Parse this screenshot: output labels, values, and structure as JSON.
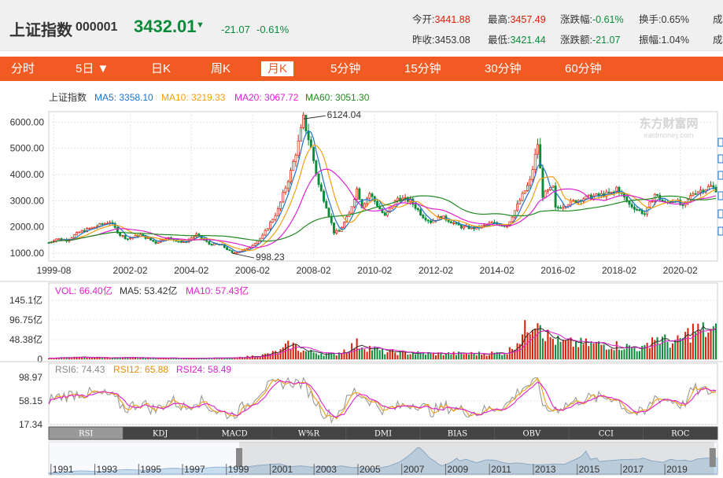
{
  "header": {
    "name": "上证指数",
    "code": "000001",
    "price": "3432.01",
    "arrow": "▼",
    "change": "-21.07",
    "change_pct": "-0.61%",
    "stats": [
      {
        "label": "今开:",
        "value": "3441.88",
        "color": "#d81e06"
      },
      {
        "label": "最高:",
        "value": "3457.49",
        "color": "#d81e06"
      },
      {
        "label": "涨跌幅:",
        "value": "-0.61%",
        "color": "#0b8a3a"
      },
      {
        "label": "换手:",
        "value": "0.65%",
        "color": "#333333"
      },
      {
        "label": "昨收:",
        "value": "3453.08",
        "color": "#333333"
      },
      {
        "label": "最低:",
        "value": "3421.44",
        "color": "#0b8a3a"
      },
      {
        "label": "涨跌额:",
        "value": "-21.07",
        "color": "#0b8a3a"
      },
      {
        "label": "振幅:",
        "value": "1.04%",
        "color": "#333333"
      }
    ],
    "cut_label": "成"
  },
  "tabs": [
    "分时",
    "5日 ▼",
    "日K",
    "周K",
    "月K",
    "5分钟",
    "15分钟",
    "30分钟",
    "60分钟"
  ],
  "active_tab": "月K",
  "colors": {
    "up": "#d81e06",
    "down": "#0b8a3a",
    "accent": "#f15a22",
    "ma5": "#1e73c8",
    "ma10": "#f0a010",
    "ma20": "#e020d0",
    "ma60": "#208a20",
    "rsi6": "#888888",
    "rsi12": "#f0a010",
    "rsi24": "#e020d0"
  },
  "watermark": "东方财富网",
  "watermark_sub": "eastmoney.com",
  "chart_data": [
    {
      "type": "candlestick",
      "title": "上证指数",
      "legend": [
        {
          "name": "MA5",
          "value": "3358.10"
        },
        {
          "name": "MA10",
          "value": "3219.33"
        },
        {
          "name": "MA20",
          "value": "3067.72"
        },
        {
          "name": "MA60",
          "value": "3051.30"
        }
      ],
      "ylim": [
        700,
        6400
      ],
      "y_ticks": [
        "1000.00",
        "2000.00",
        "3000.00",
        "4000.00",
        "5000.00",
        "6000.00"
      ],
      "x_ticks": [
        "1999-08",
        "2002-02",
        "2004-02",
        "2006-02",
        "2008-02",
        "2010-02",
        "2012-02",
        "2014-02",
        "2016-02",
        "2018-02",
        "2020-02"
      ],
      "annotations": [
        {
          "text": "6124.04",
          "date": "2007-10",
          "value": 6124.04
        },
        {
          "text": "998.23",
          "date": "2005-06",
          "value": 998.23
        }
      ],
      "anchors": [
        [
          "1999-06",
          1400
        ],
        [
          "1999-09",
          1550
        ],
        [
          "2000-01",
          1500
        ],
        [
          "2000-06",
          1800
        ],
        [
          "2000-12",
          2000
        ],
        [
          "2001-06",
          2200
        ],
        [
          "2001-10",
          1700
        ],
        [
          "2002-01",
          1550
        ],
        [
          "2002-06",
          1700
        ],
        [
          "2002-12",
          1400
        ],
        [
          "2003-04",
          1600
        ],
        [
          "2003-11",
          1400
        ],
        [
          "2004-04",
          1700
        ],
        [
          "2004-09",
          1350
        ],
        [
          "2005-02",
          1300
        ],
        [
          "2005-06",
          998
        ],
        [
          "2005-12",
          1160
        ],
        [
          "2006-06",
          1650
        ],
        [
          "2006-12",
          2650
        ],
        [
          "2007-05",
          4100
        ],
        [
          "2007-08",
          5200
        ],
        [
          "2007-10",
          6124
        ],
        [
          "2008-01",
          5000
        ],
        [
          "2008-04",
          3600
        ],
        [
          "2008-07",
          2800
        ],
        [
          "2008-10",
          1800
        ],
        [
          "2008-12",
          1820
        ],
        [
          "2009-04",
          2500
        ],
        [
          "2009-07",
          3450
        ],
        [
          "2009-09",
          2800
        ],
        [
          "2009-12",
          3270
        ],
        [
          "2010-06",
          2400
        ],
        [
          "2010-11",
          3100
        ],
        [
          "2011-04",
          3000
        ],
        [
          "2011-09",
          2400
        ],
        [
          "2011-12",
          2200
        ],
        [
          "2012-04",
          2400
        ],
        [
          "2012-12",
          2000
        ],
        [
          "2013-06",
          1950
        ],
        [
          "2013-12",
          2150
        ],
        [
          "2014-06",
          2050
        ],
        [
          "2014-12",
          3200
        ],
        [
          "2015-03",
          3750
        ],
        [
          "2015-06",
          5178
        ],
        [
          "2015-08",
          3200
        ],
        [
          "2015-12",
          3500
        ],
        [
          "2016-01",
          2700
        ],
        [
          "2016-06",
          2900
        ],
        [
          "2016-12",
          3100
        ],
        [
          "2017-06",
          3200
        ],
        [
          "2017-12",
          3300
        ],
        [
          "2018-01",
          3500
        ],
        [
          "2018-06",
          2850
        ],
        [
          "2018-12",
          2500
        ],
        [
          "2019-04",
          3250
        ],
        [
          "2019-08",
          2900
        ],
        [
          "2019-12",
          3050
        ],
        [
          "2020-03",
          2750
        ],
        [
          "2020-07",
          3300
        ],
        [
          "2020-12",
          3470
        ],
        [
          "2021-02",
          3550
        ],
        [
          "2021-04",
          3432
        ]
      ]
    },
    {
      "type": "bar",
      "title": "VOL",
      "legend": [
        {
          "name": "VOL",
          "value": "66.40亿"
        },
        {
          "name": "MA5",
          "value": "53.42亿"
        },
        {
          "name": "MA10",
          "value": "57.43亿"
        }
      ],
      "unit": "亿",
      "ylim": [
        0,
        145.1
      ],
      "y_ticks": [
        "0",
        "48.38亿",
        "96.75亿",
        "145.1亿"
      ],
      "anchors": [
        [
          "1999-06",
          3
        ],
        [
          "2000-06",
          5
        ],
        [
          "2001-06",
          4
        ],
        [
          "2003-06",
          3
        ],
        [
          "2005-06",
          3
        ],
        [
          "2006-06",
          10
        ],
        [
          "2007-01",
          20
        ],
        [
          "2007-05",
          38
        ],
        [
          "2007-10",
          20
        ],
        [
          "2008-10",
          12
        ],
        [
          "2009-03",
          25
        ],
        [
          "2009-07",
          38
        ],
        [
          "2010-06",
          18
        ],
        [
          "2011-12",
          14
        ],
        [
          "2013-06",
          14
        ],
        [
          "2014-06",
          16
        ],
        [
          "2014-12",
          60
        ],
        [
          "2015-03",
          90
        ],
        [
          "2015-06",
          118
        ],
        [
          "2015-09",
          60
        ],
        [
          "2016-03",
          40
        ],
        [
          "2016-12",
          38
        ],
        [
          "2017-12",
          35
        ],
        [
          "2018-12",
          26
        ],
        [
          "2019-03",
          55
        ],
        [
          "2019-12",
          38
        ],
        [
          "2020-07",
          72
        ],
        [
          "2021-04",
          66
        ]
      ]
    },
    {
      "type": "line",
      "title": "RSI",
      "legend": [
        {
          "name": "RSI6",
          "value": "74.43"
        },
        {
          "name": "RSI12",
          "value": "65.88"
        },
        {
          "name": "RSI24",
          "value": "58.49"
        }
      ],
      "y_ticks": [
        "17.34",
        "58.15",
        "98.97"
      ],
      "ylim": [
        17.34,
        98.97
      ],
      "anchors": [
        [
          "1999-06",
          62
        ],
        [
          "2000-06",
          72
        ],
        [
          "2001-06",
          68
        ],
        [
          "2001-12",
          45
        ],
        [
          "2002-06",
          55
        ],
        [
          "2002-12",
          42
        ],
        [
          "2003-06",
          60
        ],
        [
          "2003-12",
          45
        ],
        [
          "2004-04",
          62
        ],
        [
          "2004-12",
          40
        ],
        [
          "2005-06",
          34
        ],
        [
          "2005-12",
          52
        ],
        [
          "2006-06",
          80
        ],
        [
          "2007-04",
          92
        ],
        [
          "2007-10",
          88
        ],
        [
          "2008-06",
          38
        ],
        [
          "2008-10",
          30
        ],
        [
          "2009-06",
          75
        ],
        [
          "2009-12",
          60
        ],
        [
          "2010-06",
          42
        ],
        [
          "2011-06",
          55
        ],
        [
          "2011-12",
          40
        ],
        [
          "2012-06",
          48
        ],
        [
          "2012-12",
          42
        ],
        [
          "2013-06",
          38
        ],
        [
          "2014-06",
          52
        ],
        [
          "2014-12",
          82
        ],
        [
          "2015-06",
          92
        ],
        [
          "2015-09",
          40
        ],
        [
          "2016-03",
          48
        ],
        [
          "2016-12",
          62
        ],
        [
          "2017-12",
          65
        ],
        [
          "2018-06",
          40
        ],
        [
          "2018-12",
          35
        ],
        [
          "2019-04",
          65
        ],
        [
          "2019-12",
          58
        ],
        [
          "2020-03",
          50
        ],
        [
          "2020-07",
          78
        ],
        [
          "2020-12",
          75
        ],
        [
          "2021-04",
          74
        ]
      ]
    }
  ],
  "indicator_tabs": [
    "RSI",
    "KDJ",
    "MACD",
    "W%R",
    "DMI",
    "BIAS",
    "OBV",
    "CCI",
    "ROC"
  ],
  "active_indicator": "RSI",
  "timeline_years": [
    "1991",
    "1993",
    "1995",
    "1997",
    "1999",
    "2001",
    "2003",
    "2005",
    "2007",
    "2009",
    "2011",
    "2013",
    "2015",
    "2017",
    "2019"
  ],
  "timeline_range": [
    "1999-08",
    "2021-04"
  ]
}
